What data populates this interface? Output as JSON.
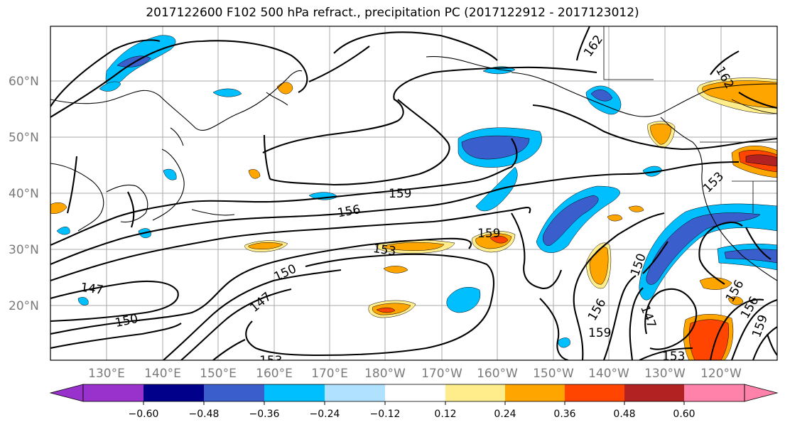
{
  "title": "2017122600 F102 500 hPa refract., precipitation PC (2017122912 - 2017123012)",
  "lat_labels": [
    "60°N",
    "50°N",
    "40°N",
    "30°N",
    "20°N"
  ],
  "lon_labels": [
    "130°E",
    "140°E",
    "150°E",
    "160°E",
    "170°E",
    "180°W",
    "170°W",
    "160°W",
    "150°W",
    "140°W",
    "130°W",
    "120°W"
  ],
  "contour_labels": [
    "162",
    "162",
    "159",
    "159",
    "159",
    "159",
    "156",
    "156",
    "156",
    "156",
    "153",
    "153",
    "153",
    "153",
    "150",
    "150",
    "150",
    "147",
    "147",
    "147"
  ],
  "colorbar": {
    "colors": [
      "#9932cc",
      "#00008b",
      "#3a5fcd",
      "#00bfff",
      "#b0e2ff",
      "#ffffff",
      "#ffec8b",
      "#ffa500",
      "#ff4500",
      "#b22222",
      "#ff82ab"
    ],
    "tick_labels": [
      "−0.60",
      "−0.48",
      "−0.36",
      "−0.24",
      "−0.12",
      "0.12",
      "0.24",
      "0.36",
      "0.48",
      "0.60"
    ]
  }
}
